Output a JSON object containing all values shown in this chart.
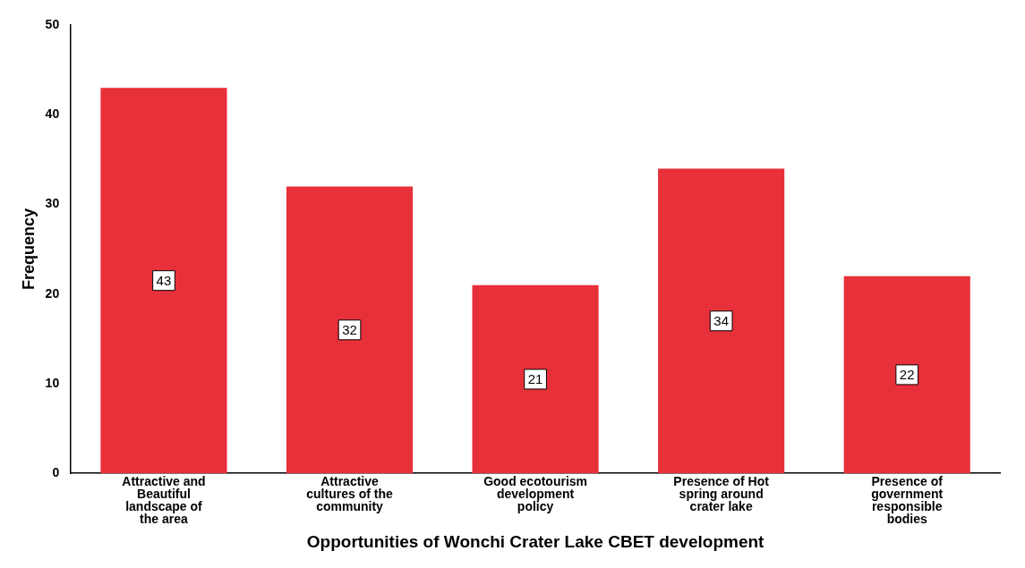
{
  "chart_data": {
    "type": "bar",
    "xlabel": "Opportunities of Wonchi Crater Lake CBET development",
    "ylabel": "Frequency",
    "categories": [
      "Attractive and Beautiful landscape of the area",
      "Attractive cultures of the community",
      "Good ecotourism development policy",
      "Presence of Hot spring around crater lake",
      "Presence of government responsible bodies"
    ],
    "values": [
      43,
      32,
      21,
      34,
      22
    ],
    "color": "#e8303a",
    "ylim": [
      0,
      50
    ],
    "yticks": [
      0,
      10,
      20,
      30,
      40,
      50
    ],
    "grid": false,
    "legend": false,
    "data_labels": true
  }
}
